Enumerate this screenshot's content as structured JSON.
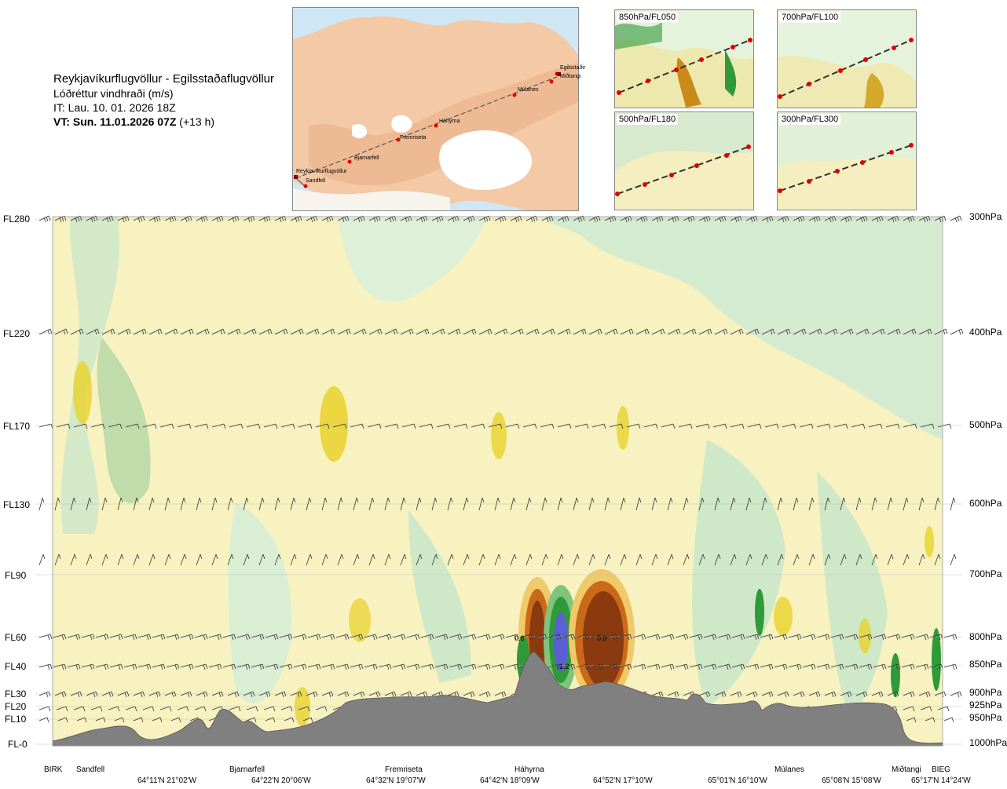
{
  "header": {
    "route": "Reykjavíkurflugvöllur - Egilsstaðaflugvöllur",
    "product": "Lóðréttur vindhraði (m/s)",
    "issue_time": "IT: Lau. 10. 01. 2026 18Z",
    "valid_time_bold": "VT: Sun. 11.01.2026 07Z",
    "valid_offset": " (+13 h)"
  },
  "map": {
    "places": [
      "Egilsstaðir",
      "Miðtangi",
      "Múlanes",
      "Háhyrna",
      "Fremriseta",
      "Bjarnarfell",
      "Reykjavíkurflugvöllur",
      "Sandfell"
    ]
  },
  "panels": [
    "850hPa/FL050",
    "700hPa/FL100",
    "500hPa/FL180",
    "300hPa/FL300"
  ],
  "chart_data": {
    "type": "heatmap",
    "title": "Lóðréttur vindhraði (m/s)",
    "left_axis_labels": [
      "FL280",
      "FL220",
      "FL170",
      "FL130",
      "FL90",
      "FL60",
      "FL40",
      "FL30",
      "FL20",
      "FL10",
      "FL-0"
    ],
    "right_axis_labels": [
      "300hPa",
      "400hPa",
      "500hPa",
      "600hPa",
      "700hPa",
      "800hPa",
      "850hPa",
      "900hPa",
      "925hPa",
      "950hPa",
      "1000hPa"
    ],
    "waypoints": [
      "BIRK",
      "Sandfell",
      "Bjarnarfell",
      "Fremriseta",
      "Háhyrna",
      "Múlanes",
      "Miðtangi",
      "BIEG"
    ],
    "latlon_ticks": [
      "64°11'N 21°02'W",
      "64°22'N 20°06'W",
      "64°32'N 19°07'W",
      "64°42'N 18°09'W",
      "64°52'N 17°10'W",
      "65°01'N 16°10'W",
      "65°08'N 15°08'W",
      "65°17'N 14°24'W"
    ],
    "annotations": [
      "0.6",
      "-1.2",
      "0.9"
    ],
    "grid": true,
    "colors": {
      "strong_up": "#8b3a0f",
      "up": "#e8d22a",
      "weak_up": "#f7f0b3",
      "neutral": "#ffffff",
      "weak_down": "#cfe8c8",
      "down": "#2f9a3a",
      "strong_down": "#5a5fd6",
      "terrain": "#808080"
    }
  }
}
